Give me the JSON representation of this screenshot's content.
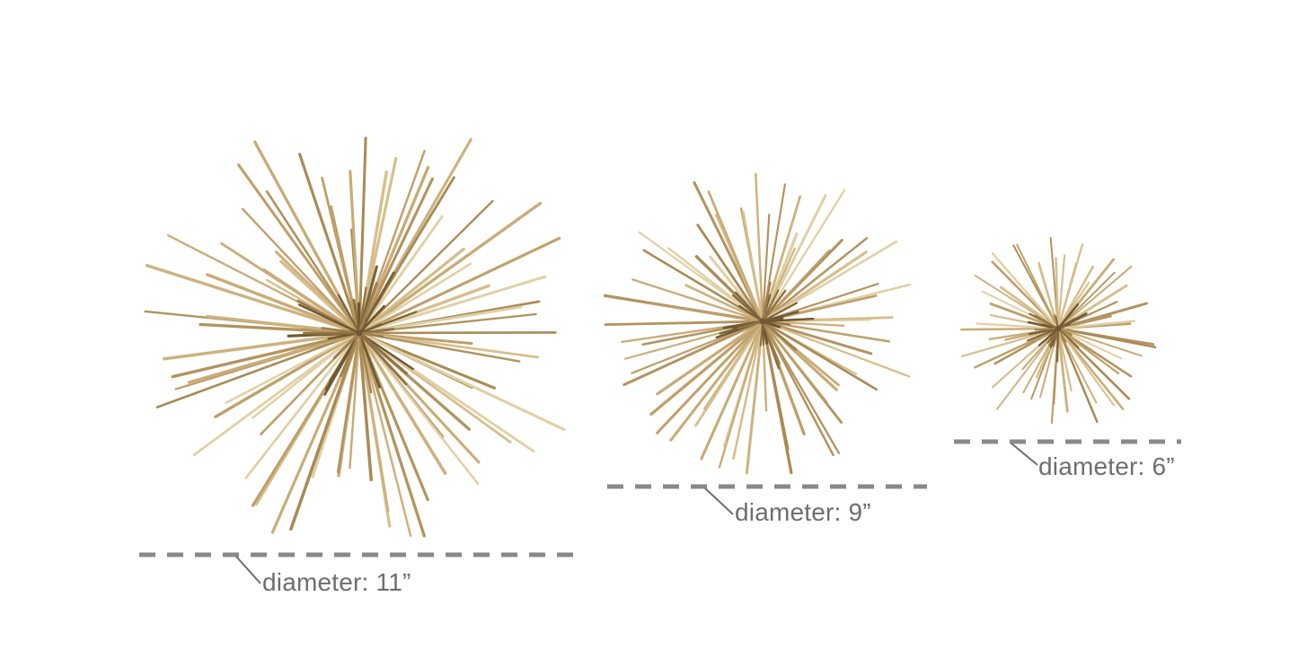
{
  "figure": {
    "description": "Three gold metal starburst / sea-urchin decorative sculptures shown in three sizes with dashed diameter measurement lines"
  },
  "product": {
    "items": [
      {
        "size_name": "large",
        "diameter_inches": 11,
        "label": "diameter: 11”"
      },
      {
        "size_name": "medium",
        "diameter_inches": 9,
        "label": "diameter: 9”"
      },
      {
        "size_name": "small",
        "diameter_inches": 6,
        "label": "diameter: 6”"
      }
    ]
  },
  "colors": {
    "background": "#ffffff",
    "label_text": "#6d6e70",
    "leader_line": "#6d6e71",
    "dash_line": "#87898c",
    "center_knot": "#6f5733",
    "gold_palette": [
      "#c9ac77",
      "#bfa06a",
      "#d6bf8d",
      "#b2945f",
      "#e0d0a5",
      "#a98b56",
      "#cdb27e"
    ],
    "gold_dark_palette": [
      "#8f7344",
      "#7c6238",
      "#a08050",
      "#6f5733"
    ]
  }
}
